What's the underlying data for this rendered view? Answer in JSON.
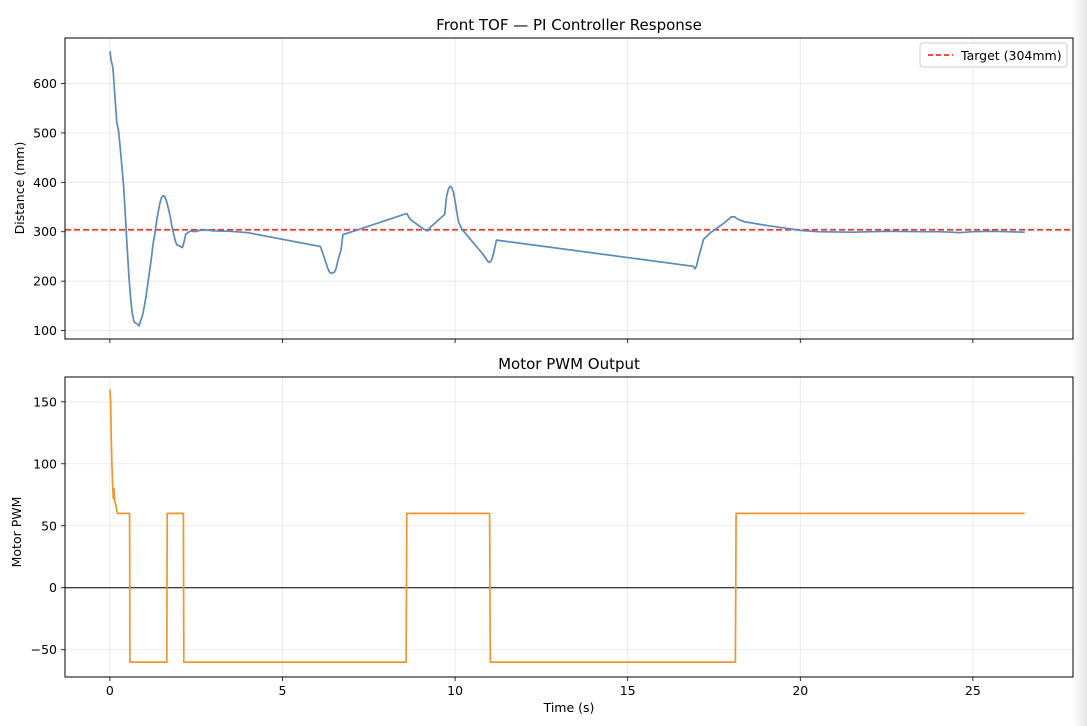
{
  "chart_data": [
    {
      "type": "line",
      "title": "Front TOF — PI Controller Response",
      "xlabel": "",
      "ylabel": "Distance (mm)",
      "xlim": [
        -1.3,
        27.9
      ],
      "ylim": [
        83,
        692
      ],
      "grid": true,
      "x_ticks": [
        0,
        5,
        10,
        15,
        20,
        25
      ],
      "x_tick_labels": [
        "",
        "",
        "",
        "",
        "",
        ""
      ],
      "y_ticks": [
        100,
        200,
        300,
        400,
        500,
        600
      ],
      "y_tick_labels": [
        "100",
        "200",
        "300",
        "400",
        "500",
        "600"
      ],
      "legend": {
        "placement": "top-right",
        "entries": [
          "Target (304mm)"
        ]
      },
      "reference_line": {
        "y": 304,
        "style": "dashed",
        "color": "#e8372b"
      },
      "series": [
        {
          "color": "#5b8bb8",
          "x": [
            0,
            0.04,
            0.08,
            0.1,
            0.12,
            0.16,
            0.2,
            0.25,
            0.3,
            0.35,
            0.4,
            0.45,
            0.5,
            0.55,
            0.6,
            0.65,
            0.7,
            0.75,
            0.8,
            0.85,
            0.88,
            0.92,
            0.96,
            1.0,
            1.05,
            1.1,
            1.15,
            1.2,
            1.25,
            1.3,
            1.35,
            1.4,
            1.45,
            1.5,
            1.55,
            1.6,
            1.65,
            1.7,
            1.75,
            1.8,
            1.85,
            1.9,
            1.95,
            2.0,
            2.05,
            2.1,
            2.15,
            2.2,
            2.3,
            2.35,
            2.4,
            2.45,
            2.5,
            2.6,
            2.8,
            3.0,
            3.5,
            4.0,
            6.1,
            6.2,
            6.3,
            6.35,
            6.4,
            6.5,
            6.55,
            6.6,
            6.7,
            6.75,
            8.6,
            8.7,
            9.1,
            9.2,
            9.3,
            9.7,
            9.75,
            9.8,
            9.85,
            9.9,
            9.95,
            10.0,
            10.05,
            10.1,
            10.2,
            10.5,
            10.8,
            10.95,
            11.0,
            11.05,
            11.1,
            11.15,
            11.2,
            16.9,
            16.95,
            17.0,
            17.05,
            17.1,
            17.2,
            17.4,
            17.8,
            18.0,
            18.1,
            18.2,
            18.4,
            19.0,
            20.0,
            20.5,
            21.5,
            22.5,
            23.5,
            24.0,
            24.4,
            24.6,
            25.0,
            25.5,
            26.0,
            26.5
          ],
          "y": [
            665,
            645,
            635,
            622,
            600,
            560,
            520,
            505,
            470,
            430,
            390,
            330,
            270,
            210,
            165,
            135,
            118,
            115,
            113,
            110,
            118,
            125,
            135,
            150,
            170,
            195,
            220,
            245,
            275,
            295,
            320,
            340,
            358,
            370,
            373,
            370,
            360,
            345,
            330,
            310,
            295,
            280,
            273,
            272,
            270,
            268,
            280,
            295,
            300,
            302,
            301,
            300,
            301,
            303,
            304,
            302,
            301,
            298,
            270,
            250,
            228,
            220,
            216,
            218,
            225,
            240,
            265,
            294,
            337,
            325,
            305,
            302,
            310,
            335,
            370,
            385,
            392,
            390,
            380,
            362,
            340,
            320,
            305,
            280,
            255,
            240,
            238,
            242,
            252,
            268,
            283,
            230,
            225,
            232,
            248,
            260,
            285,
            298,
            318,
            330,
            330,
            325,
            320,
            313,
            303,
            300,
            299,
            301,
            300,
            300,
            299,
            298,
            300,
            301,
            300,
            299
          ]
        }
      ]
    },
    {
      "type": "line",
      "title": "Motor PWM Output",
      "xlabel": "Time (s)",
      "ylabel": "Motor PWM",
      "xlim": [
        -1.3,
        27.9
      ],
      "ylim": [
        -72,
        170
      ],
      "grid": true,
      "x_ticks": [
        0,
        5,
        10,
        15,
        20,
        25
      ],
      "x_tick_labels": [
        "0",
        "5",
        "10",
        "15",
        "20",
        "25"
      ],
      "y_ticks": [
        -50,
        0,
        50,
        100,
        150
      ],
      "y_tick_labels": [
        "−50",
        "0",
        "50",
        "100",
        "150"
      ],
      "zero_line": {
        "y": 0,
        "color": "#000000"
      },
      "series": [
        {
          "color": "#f0962f",
          "x": [
            0,
            0.02,
            0.04,
            0.06,
            0.08,
            0.1,
            0.12,
            0.14,
            0.16,
            0.18,
            0.2,
            0.22,
            0.25,
            0.57,
            0.58,
            1.65,
            1.66,
            2.13,
            2.14,
            8.58,
            8.6,
            11.0,
            11.02,
            18.12,
            18.14,
            26.5
          ],
          "y": [
            160,
            150,
            120,
            100,
            84,
            72,
            80,
            70,
            68,
            66,
            62,
            60,
            60,
            60,
            -60,
            -60,
            60,
            60,
            -60,
            -60,
            60,
            60,
            -60,
            -60,
            60,
            60
          ]
        }
      ]
    }
  ]
}
